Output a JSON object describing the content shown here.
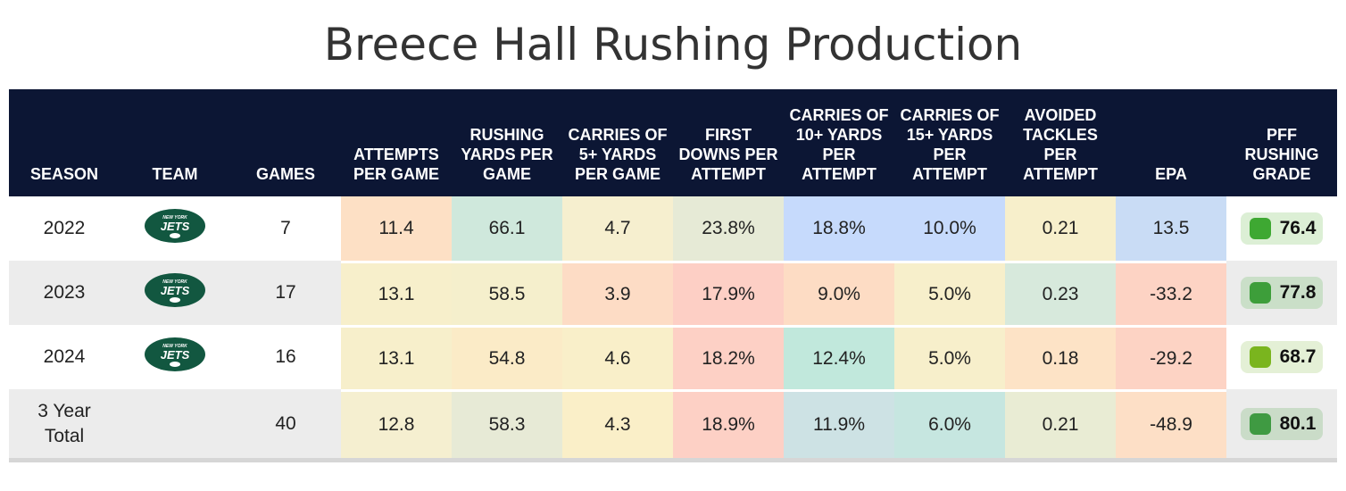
{
  "chart_data": {
    "type": "table",
    "title": "Breece Hall Rushing Production",
    "columns": [
      {
        "key": "season",
        "label": "SEASON"
      },
      {
        "key": "team",
        "label": "TEAM"
      },
      {
        "key": "games",
        "label": "GAMES"
      },
      {
        "key": "att_pg",
        "label": "ATTEMPTS PER GAME"
      },
      {
        "key": "yds_pg",
        "label": "RUSHING YARDS PER GAME"
      },
      {
        "key": "c5_pg",
        "label": "CARRIES OF 5+ YARDS PER GAME"
      },
      {
        "key": "fd_pa",
        "label": "FIRST DOWNS PER ATTEMPT"
      },
      {
        "key": "c10_pa",
        "label": "CARRIES OF 10+ YARDS PER ATTEMPT"
      },
      {
        "key": "c15_pa",
        "label": "CARRIES OF 15+ YARDS PER ATTEMPT"
      },
      {
        "key": "at_pa",
        "label": "AVOIDED TACKLES PER ATTEMPT"
      },
      {
        "key": "epa",
        "label": "EPA"
      },
      {
        "key": "grade",
        "label": "PFF RUSHING GRADE"
      }
    ],
    "rows": [
      {
        "season": "2022",
        "team": "New York Jets",
        "team_logo": "jets-logo",
        "games": "7",
        "att_pg": "11.4",
        "yds_pg": "66.1",
        "c5_pg": "4.7",
        "fd_pa": "23.8%",
        "c10_pa": "18.8%",
        "c15_pa": "10.0%",
        "at_pa": "0.21",
        "epa": "13.5",
        "grade": "76.4",
        "colors": {
          "att_pg": "#fde0c5",
          "yds_pg": "#cfe8dc",
          "c5_pg": "#f6efcf",
          "fd_pa": "#e6ead6",
          "c10_pa": "#c6dafc",
          "c15_pa": "#c6dafc",
          "at_pa": "#f7efcb",
          "epa": "#c9dcf5"
        },
        "grade_dot": "#3ea832",
        "grade_bg": "#dcefd5"
      },
      {
        "season": "2023",
        "team": "New York Jets",
        "team_logo": "jets-logo",
        "games": "17",
        "att_pg": "13.1",
        "yds_pg": "58.5",
        "c5_pg": "3.9",
        "fd_pa": "17.9%",
        "c10_pa": "9.0%",
        "c15_pa": "5.0%",
        "at_pa": "0.23",
        "epa": "-33.2",
        "grade": "77.8",
        "colors": {
          "att_pg": "#f7efcb",
          "yds_pg": "#f5efcc",
          "c5_pg": "#fddcc5",
          "fd_pa": "#fdcfc5",
          "c10_pa": "#fddcc4",
          "c15_pa": "#f7efcb",
          "at_pa": "#d7e9dc",
          "epa": "#fdd3c4"
        },
        "grade_dot": "#3d9e3a",
        "grade_bg": "#cadfc8"
      },
      {
        "season": "2024",
        "team": "New York Jets",
        "team_logo": "jets-logo",
        "games": "16",
        "att_pg": "13.1",
        "yds_pg": "54.8",
        "c5_pg": "4.6",
        "fd_pa": "18.2%",
        "c10_pa": "12.4%",
        "c15_pa": "5.0%",
        "at_pa": "0.18",
        "epa": "-29.2",
        "grade": "68.7",
        "colors": {
          "att_pg": "#f7efcb",
          "yds_pg": "#fbebc7",
          "c5_pg": "#f9efc9",
          "fd_pa": "#fdd0c5",
          "c10_pa": "#c1e8dc",
          "c15_pa": "#f7efcb",
          "at_pa": "#fde3c6",
          "epa": "#fdd3c4"
        },
        "grade_dot": "#7ab51e",
        "grade_bg": "#e4f0d6"
      },
      {
        "season": "3 Year Total",
        "team": "",
        "team_logo": "",
        "games": "40",
        "att_pg": "12.8",
        "yds_pg": "58.3",
        "c5_pg": "4.3",
        "fd_pa": "18.9%",
        "c10_pa": "11.9%",
        "c15_pa": "6.0%",
        "at_pa": "0.21",
        "epa": "-48.9",
        "grade": "80.1",
        "colors": {
          "att_pg": "#f5efd0",
          "yds_pg": "#e7ead6",
          "c5_pg": "#faefc8",
          "fd_pa": "#fdd0c5",
          "c10_pa": "#cde2e4",
          "c15_pa": "#c6e6e0",
          "at_pa": "#e9ecd4",
          "epa": "#fddfc6"
        },
        "grade_dot": "#3f9a42",
        "grade_bg": "#cadcc8"
      }
    ]
  }
}
